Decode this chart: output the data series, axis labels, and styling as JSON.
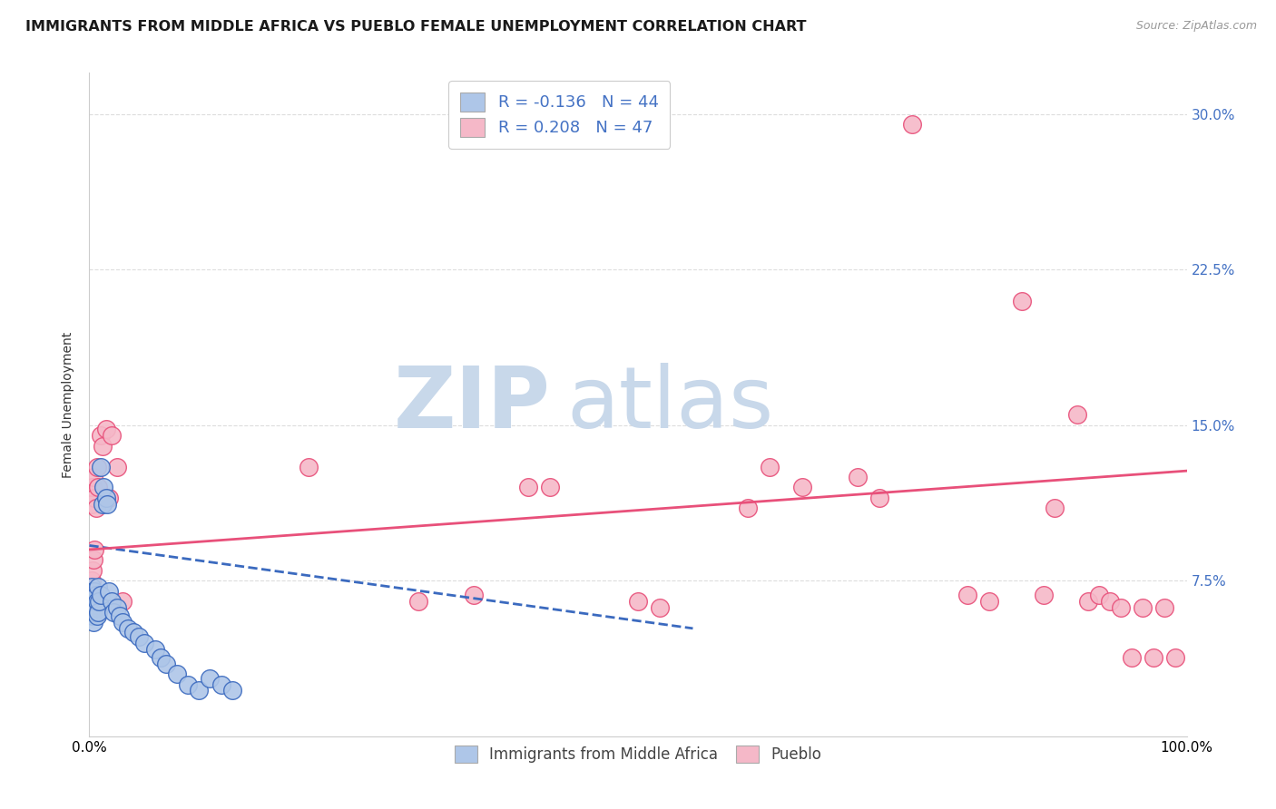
{
  "title": "IMMIGRANTS FROM MIDDLE AFRICA VS PUEBLO FEMALE UNEMPLOYMENT CORRELATION CHART",
  "source": "Source: ZipAtlas.com",
  "xlabel": "",
  "ylabel": "Female Unemployment",
  "xlim": [
    0.0,
    1.0
  ],
  "ylim": [
    0.0,
    0.32
  ],
  "yticks": [
    0.075,
    0.15,
    0.225,
    0.3
  ],
  "ytick_labels": [
    "7.5%",
    "15.0%",
    "22.5%",
    "30.0%"
  ],
  "xtick_labels": [
    "0.0%",
    "100.0%"
  ],
  "legend_r_blue": "-0.136",
  "legend_n_blue": "44",
  "legend_r_pink": "0.208",
  "legend_n_pink": "47",
  "blue_color": "#aec6e8",
  "pink_color": "#f5b8c8",
  "blue_line_color": "#3b6abf",
  "pink_line_color": "#e8507a",
  "watermark_zip": "ZIP",
  "watermark_atlas": "atlas",
  "background_color": "#ffffff",
  "grid_color": "#dddddd",
  "title_fontsize": 11.5,
  "axis_label_fontsize": 10,
  "tick_fontsize": 11,
  "right_tick_color": "#4472c4",
  "watermark_zip_color": "#c8d8ea",
  "watermark_atlas_color": "#c8d8ea",
  "blue_scatter_x": [
    0.001,
    0.002,
    0.002,
    0.003,
    0.003,
    0.003,
    0.004,
    0.004,
    0.004,
    0.005,
    0.005,
    0.005,
    0.006,
    0.006,
    0.007,
    0.007,
    0.008,
    0.008,
    0.009,
    0.01,
    0.01,
    0.012,
    0.013,
    0.015,
    0.016,
    0.018,
    0.02,
    0.022,
    0.025,
    0.028,
    0.03,
    0.035,
    0.04,
    0.045,
    0.05,
    0.06,
    0.065,
    0.07,
    0.08,
    0.09,
    0.1,
    0.11,
    0.12,
    0.13
  ],
  "blue_scatter_y": [
    0.06,
    0.068,
    0.072,
    0.058,
    0.065,
    0.07,
    0.055,
    0.062,
    0.068,
    0.06,
    0.065,
    0.07,
    0.062,
    0.068,
    0.058,
    0.065,
    0.06,
    0.072,
    0.065,
    0.068,
    0.13,
    0.112,
    0.12,
    0.115,
    0.112,
    0.07,
    0.065,
    0.06,
    0.062,
    0.058,
    0.055,
    0.052,
    0.05,
    0.048,
    0.045,
    0.042,
    0.038,
    0.035,
    0.03,
    0.025,
    0.022,
    0.028,
    0.025,
    0.022
  ],
  "pink_scatter_x": [
    0.001,
    0.002,
    0.002,
    0.003,
    0.003,
    0.004,
    0.004,
    0.005,
    0.005,
    0.006,
    0.007,
    0.008,
    0.01,
    0.012,
    0.015,
    0.018,
    0.02,
    0.025,
    0.03,
    0.2,
    0.3,
    0.35,
    0.4,
    0.42,
    0.5,
    0.52,
    0.6,
    0.62,
    0.65,
    0.7,
    0.72,
    0.75,
    0.8,
    0.82,
    0.85,
    0.87,
    0.88,
    0.9,
    0.91,
    0.92,
    0.93,
    0.94,
    0.95,
    0.96,
    0.97,
    0.98,
    0.99
  ],
  "pink_scatter_y": [
    0.068,
    0.075,
    0.112,
    0.08,
    0.12,
    0.085,
    0.125,
    0.09,
    0.115,
    0.11,
    0.13,
    0.12,
    0.145,
    0.14,
    0.148,
    0.115,
    0.145,
    0.13,
    0.065,
    0.13,
    0.065,
    0.068,
    0.12,
    0.12,
    0.065,
    0.062,
    0.11,
    0.13,
    0.12,
    0.125,
    0.115,
    0.295,
    0.068,
    0.065,
    0.21,
    0.068,
    0.11,
    0.155,
    0.065,
    0.068,
    0.065,
    0.062,
    0.038,
    0.062,
    0.038,
    0.062,
    0.038
  ],
  "blue_trend_x0": 0.0,
  "blue_trend_x1": 0.55,
  "blue_trend_y0": 0.092,
  "blue_trend_y1": 0.052,
  "pink_trend_x0": 0.0,
  "pink_trend_x1": 1.0,
  "pink_trend_y0": 0.09,
  "pink_trend_y1": 0.128
}
